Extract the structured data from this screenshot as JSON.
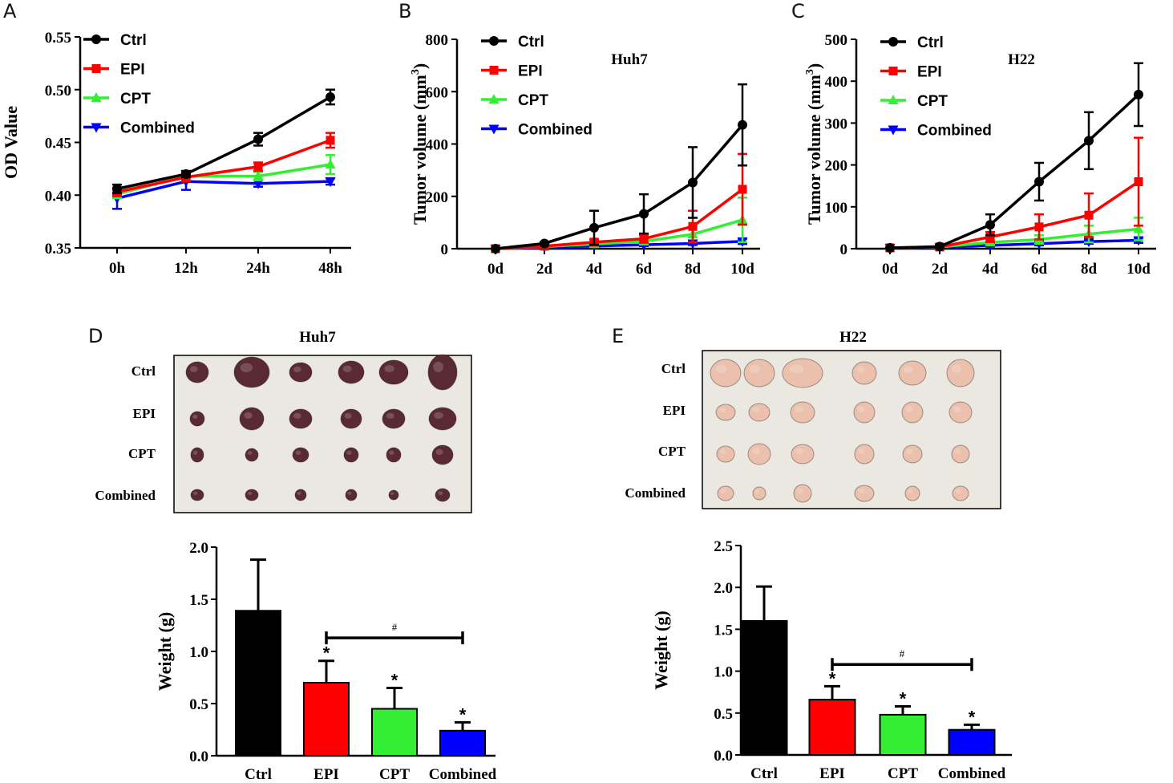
{
  "panels": {
    "A": {
      "letter": "A"
    },
    "B": {
      "letter": "B",
      "inset_title": "Huh7"
    },
    "C": {
      "letter": "C",
      "inset_title": "H22"
    },
    "D": {
      "letter": "D",
      "photo_title": "Huh7",
      "rows": [
        "Ctrl",
        "EPI",
        "CPT",
        "Combined"
      ]
    },
    "E": {
      "letter": "E",
      "photo_title": "H22",
      "rows": [
        "Ctrl",
        "EPI",
        "CPT",
        "Combined"
      ]
    }
  },
  "colors": {
    "Ctrl": "#000000",
    "EPI": "#ff0000",
    "CPT": "#33ee33",
    "Combined": "#0000ff",
    "tumor_huh7": "#5a2a33",
    "tumor_h22": "#ebc1ad",
    "photo_bg": "#ebe7e1"
  },
  "chart_data": [
    {
      "id": "A",
      "type": "line",
      "title": "",
      "xlabel": "",
      "ylabel": "OD Value",
      "ylim": [
        0.35,
        0.55
      ],
      "yticks": [
        "0.35",
        "0.40",
        "0.45",
        "0.50",
        "0.55"
      ],
      "categories": [
        "0h",
        "12h",
        "24h",
        "48h"
      ],
      "series": [
        {
          "name": "Ctrl",
          "marker": "circle",
          "values": [
            0.406,
            0.42,
            0.453,
            0.493
          ],
          "errors": [
            0.004,
            0.003,
            0.006,
            0.007
          ]
        },
        {
          "name": "EPI",
          "marker": "square",
          "values": [
            0.403,
            0.417,
            0.427,
            0.452
          ],
          "errors": [
            0.004,
            0.004,
            0.004,
            0.007
          ]
        },
        {
          "name": "CPT",
          "marker": "triangle-up",
          "values": [
            0.401,
            0.418,
            0.418,
            0.429
          ],
          "errors": [
            0.004,
            0.004,
            0.004,
            0.009
          ]
        },
        {
          "name": "Combined",
          "marker": "triangle-down",
          "values": [
            0.397,
            0.413,
            0.411,
            0.413
          ],
          "errors": [
            0.01,
            0.008,
            0.003,
            0.003
          ]
        }
      ]
    },
    {
      "id": "B",
      "type": "line",
      "title": "Huh7",
      "xlabel": "",
      "ylabel": "Tumor volume (mm",
      "ylabel_sup": "3",
      "ylabel_end": ")",
      "ylim": [
        0,
        800
      ],
      "yticks": [
        "0",
        "200",
        "400",
        "600",
        "800"
      ],
      "categories": [
        "0d",
        "2d",
        "4d",
        "6d",
        "8d",
        "10d"
      ],
      "series": [
        {
          "name": "Ctrl",
          "marker": "circle",
          "values": [
            0,
            20,
            80,
            133,
            253,
            473
          ],
          "errors": [
            0,
            5,
            65,
            75,
            135,
            155
          ]
        },
        {
          "name": "EPI",
          "marker": "square",
          "values": [
            0,
            10,
            25,
            38,
            85,
            227
          ],
          "errors": [
            0,
            3,
            10,
            15,
            60,
            135
          ]
        },
        {
          "name": "CPT",
          "marker": "triangle-up",
          "values": [
            0,
            8,
            18,
            28,
            55,
            110
          ],
          "errors": [
            0,
            2,
            6,
            10,
            30,
            85
          ]
        },
        {
          "name": "Combined",
          "marker": "triangle-down",
          "values": [
            0,
            5,
            10,
            15,
            20,
            28
          ],
          "errors": [
            0,
            2,
            4,
            5,
            6,
            10
          ]
        }
      ]
    },
    {
      "id": "C",
      "type": "line",
      "title": "H22",
      "xlabel": "",
      "ylabel": "Tumor volume (mm",
      "ylabel_sup": "3",
      "ylabel_end": ")",
      "ylim": [
        0,
        500
      ],
      "yticks": [
        "0",
        "100",
        "200",
        "300",
        "400",
        "500"
      ],
      "categories": [
        "0d",
        "2d",
        "4d",
        "6d",
        "8d",
        "10d"
      ],
      "series": [
        {
          "name": "Ctrl",
          "marker": "circle",
          "values": [
            2,
            5,
            57,
            160,
            258,
            368
          ],
          "errors": [
            0,
            3,
            25,
            45,
            68,
            75
          ]
        },
        {
          "name": "EPI",
          "marker": "square",
          "values": [
            2,
            4,
            28,
            52,
            80,
            160
          ],
          "errors": [
            0,
            2,
            12,
            30,
            52,
            105
          ]
        },
        {
          "name": "CPT",
          "marker": "triangle-up",
          "values": [
            2,
            4,
            15,
            22,
            35,
            47
          ],
          "errors": [
            0,
            2,
            6,
            10,
            20,
            27
          ]
        },
        {
          "name": "Combined",
          "marker": "triangle-down",
          "values": [
            2,
            3,
            8,
            12,
            17,
            20
          ],
          "errors": [
            0,
            2,
            3,
            4,
            5,
            6
          ]
        }
      ]
    },
    {
      "id": "D",
      "type": "bar",
      "title": "",
      "xlabel": "",
      "ylabel": "Weight (g)",
      "ylim": [
        0,
        2.0
      ],
      "yticks": [
        "0.0",
        "0.5",
        "1.0",
        "1.5",
        "2.0"
      ],
      "categories": [
        "Ctrl",
        "EPI",
        "CPT",
        "Combined"
      ],
      "values": [
        1.39,
        0.7,
        0.45,
        0.24
      ],
      "errors": [
        0.49,
        0.21,
        0.2,
        0.08
      ],
      "annotations": [
        "",
        "*",
        "*",
        "*"
      ],
      "bracket": {
        "from": "EPI",
        "to": "Combined",
        "label": "#",
        "y": 1.13
      }
    },
    {
      "id": "E",
      "type": "bar",
      "title": "",
      "xlabel": "",
      "ylabel": "Weight (g)",
      "ylim": [
        0,
        2.5
      ],
      "yticks": [
        "0.0",
        "0.5",
        "1.0",
        "1.5",
        "2.0",
        "2.5"
      ],
      "categories": [
        "Ctrl",
        "EPI",
        "CPT",
        "Combined"
      ],
      "values": [
        1.6,
        0.66,
        0.48,
        0.3
      ],
      "errors": [
        0.41,
        0.16,
        0.1,
        0.06
      ],
      "annotations": [
        "",
        "*",
        "*",
        "*"
      ],
      "bracket": {
        "from": "EPI",
        "to": "Combined",
        "label": "#",
        "y": 1.08
      }
    }
  ]
}
